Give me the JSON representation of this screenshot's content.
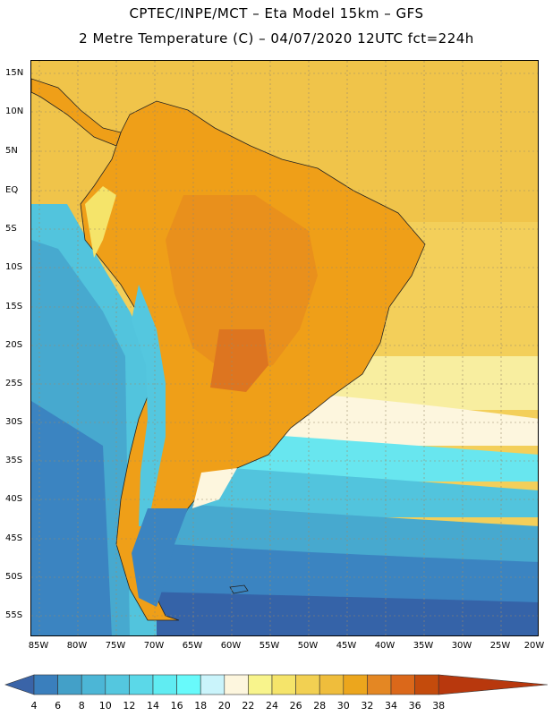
{
  "header": {
    "title_line1": "CPTEC/INPE/MCT –  Eta Model 15km – GFS",
    "title_line2": "2 Metre Temperature (C) – 04/07/2020 12UTC fct=224h"
  },
  "map": {
    "lat_labels": [
      "15N",
      "10N",
      "5N",
      "EQ",
      "5S",
      "10S",
      "15S",
      "20S",
      "25S",
      "30S",
      "35S",
      "40S",
      "45S",
      "50S",
      "55S"
    ],
    "lon_labels": [
      "85W",
      "80W",
      "75W",
      "70W",
      "65W",
      "60W",
      "55W",
      "50W",
      "45W",
      "40W",
      "35W",
      "30W",
      "25W",
      "20W"
    ],
    "ocean_color": "#f1cf55",
    "land_color": "#ef9f18"
  },
  "colorbar": {
    "values": [
      "4",
      "6",
      "8",
      "10",
      "12",
      "14",
      "16",
      "18",
      "20",
      "22",
      "24",
      "26",
      "28",
      "30",
      "32",
      "34",
      "36",
      "38"
    ],
    "colors": [
      "#3a64a8",
      "#3a7fbd",
      "#43a0c8",
      "#4cb6d6",
      "#54c7df",
      "#5bd8e8",
      "#60ecf2",
      "#68fafb",
      "#caf4fb",
      "#fdf6de",
      "#f8f48c",
      "#f5e46a",
      "#f2d052",
      "#efbd3c",
      "#eca61d",
      "#e48723",
      "#db681a",
      "#c44b0c",
      "#b8380d"
    ]
  }
}
